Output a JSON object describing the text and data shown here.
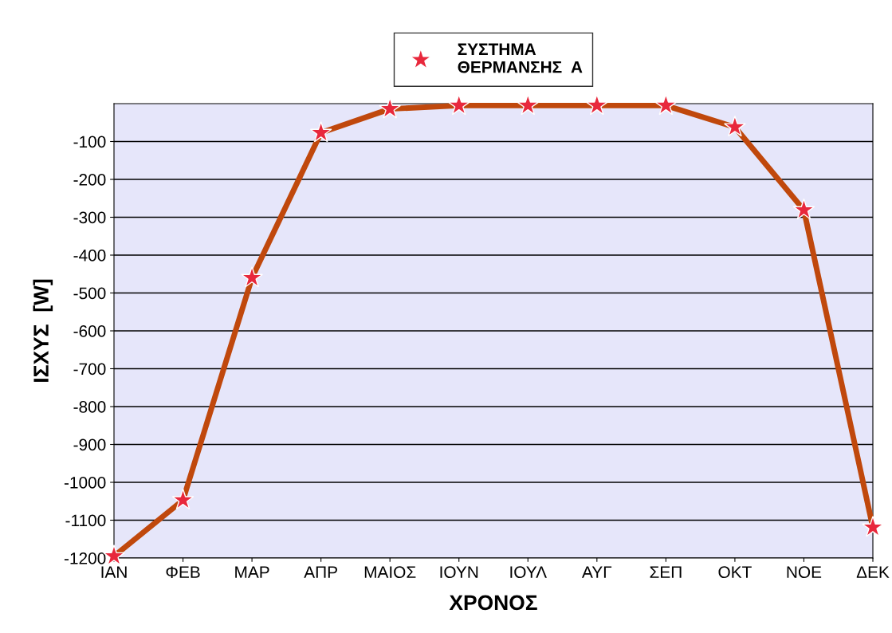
{
  "chart_data": {
    "type": "line",
    "xlabel": "ΧΡΟΝΟΣ",
    "ylabel": "ΙΣΧΥΣ  [W]",
    "categories": [
      "ΙΑΝ",
      "ΦΕΒ",
      "ΜΑΡ",
      "ΑΠΡ",
      "ΜΑΙΟΣ",
      "ΙΟΥΝ",
      "ΙΟΥΛ",
      "ΑΥΓ",
      "ΣΕΠ",
      "ΟΚΤ",
      "ΝΟΕ",
      "ΔΕΚ"
    ],
    "series": [
      {
        "name": "ΣΥΣΤΗΜΑ\nΘΕΡΜΑΝΣΗΣ  Α",
        "color": "#c0480c",
        "values": [
          -1195,
          -1047,
          -460,
          -77,
          -14,
          -5,
          -5,
          -5,
          -5,
          -62,
          -281,
          -1119
        ]
      }
    ],
    "ylim": [
      -1200,
      0
    ],
    "yticks": [
      -1200,
      -1100,
      -1000,
      -900,
      -800,
      -700,
      -600,
      -500,
      -400,
      -300,
      -200,
      -100
    ],
    "grid": "y",
    "legend": "top",
    "marker": "star",
    "line_style": "solid"
  }
}
